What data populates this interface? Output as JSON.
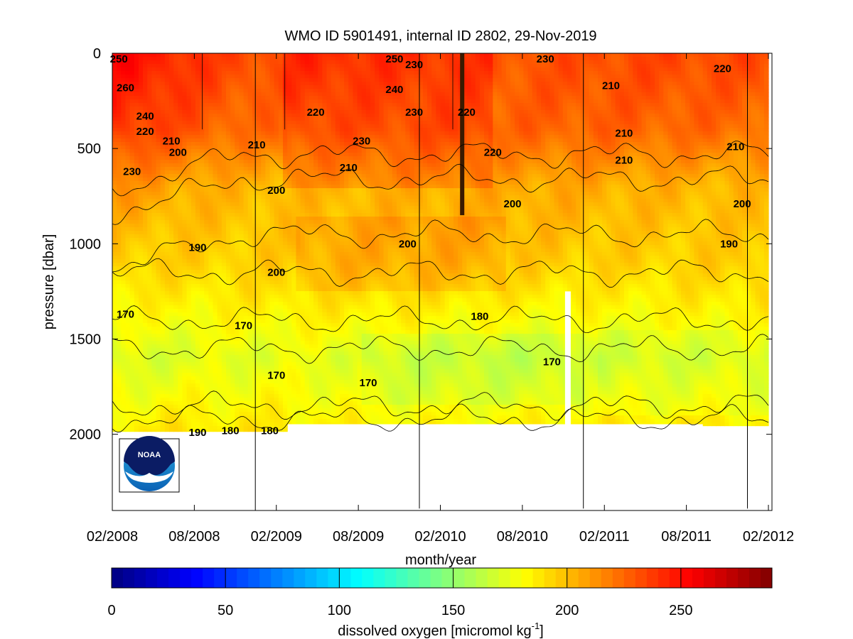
{
  "chart_data": {
    "type": "heatmap",
    "title": "WMO ID 5901491, internal ID 2802, 29-Nov-2019",
    "xlabel": "month/year",
    "ylabel": "pressure [dbar]",
    "x_ticks": [
      "02/2008",
      "08/2008",
      "02/2009",
      "08/2009",
      "02/2010",
      "08/2010",
      "02/2011",
      "08/2011",
      "02/2012"
    ],
    "y_ticks": [
      "0",
      "500",
      "1000",
      "1500",
      "2000"
    ],
    "ylim": [
      2400,
      0
    ],
    "y_inverted": true,
    "colorbar": {
      "label_main": "dissolved oxygen [micromol kg",
      "label_exp": "-1",
      "label_close": "]",
      "ticks": [
        "0",
        "50",
        "100",
        "150",
        "200",
        "250"
      ],
      "range": [
        0,
        290
      ],
      "colormap": "jet"
    },
    "contour_levels": [
      170,
      180,
      190,
      200,
      210,
      220,
      230,
      240,
      250,
      260
    ],
    "contour_labels": [
      {
        "text": "250",
        "t": 0.43,
        "p": 30
      },
      {
        "text": "230",
        "t": 0.46,
        "p": 60
      },
      {
        "text": "230",
        "t": 0.66,
        "p": 30
      },
      {
        "text": "240",
        "t": 0.43,
        "p": 190
      },
      {
        "text": "230",
        "t": 0.46,
        "p": 310
      },
      {
        "text": "230",
        "t": 0.38,
        "p": 460
      },
      {
        "text": "220",
        "t": 0.31,
        "p": 310
      },
      {
        "text": "220",
        "t": 0.54,
        "p": 310
      },
      {
        "text": "220",
        "t": 0.58,
        "p": 520
      },
      {
        "text": "210",
        "t": 0.76,
        "p": 170
      },
      {
        "text": "210",
        "t": 0.78,
        "p": 560
      },
      {
        "text": "210",
        "t": 0.78,
        "p": 420
      },
      {
        "text": "210",
        "t": 0.95,
        "p": 490
      },
      {
        "text": "220",
        "t": 0.93,
        "p": 80
      },
      {
        "text": "210",
        "t": 0.22,
        "p": 480
      },
      {
        "text": "210",
        "t": 0.36,
        "p": 600
      },
      {
        "text": "200",
        "t": 0.25,
        "p": 720
      },
      {
        "text": "200",
        "t": 0.61,
        "p": 790
      },
      {
        "text": "200",
        "t": 0.96,
        "p": 790
      },
      {
        "text": "200",
        "t": 0.45,
        "p": 1000
      },
      {
        "text": "190",
        "t": 0.94,
        "p": 1000
      },
      {
        "text": "190",
        "t": 0.13,
        "p": 1020
      },
      {
        "text": "200",
        "t": 0.25,
        "p": 1150
      },
      {
        "text": "180",
        "t": 0.56,
        "p": 1380
      },
      {
        "text": "170",
        "t": 0.02,
        "p": 1370
      },
      {
        "text": "170",
        "t": 0.2,
        "p": 1430
      },
      {
        "text": "170",
        "t": 0.67,
        "p": 1620
      },
      {
        "text": "170",
        "t": 0.39,
        "p": 1730
      },
      {
        "text": "170",
        "t": 0.25,
        "p": 1690
      },
      {
        "text": "180",
        "t": 0.18,
        "p": 1980
      },
      {
        "text": "180",
        "t": 0.24,
        "p": 1980
      },
      {
        "text": "190",
        "t": 0.13,
        "p": 1990
      },
      {
        "text": "200",
        "t": 0.1,
        "p": 520
      },
      {
        "text": "210",
        "t": 0.09,
        "p": 460
      },
      {
        "text": "220",
        "t": 0.05,
        "p": 410
      },
      {
        "text": "230",
        "t": 0.03,
        "p": 620
      },
      {
        "text": "240",
        "t": 0.05,
        "p": 330
      },
      {
        "text": "260",
        "t": 0.02,
        "p": 180
      },
      {
        "text": "250",
        "t": 0.01,
        "p": 30
      }
    ]
  },
  "logo": {
    "text": "NOAA"
  }
}
